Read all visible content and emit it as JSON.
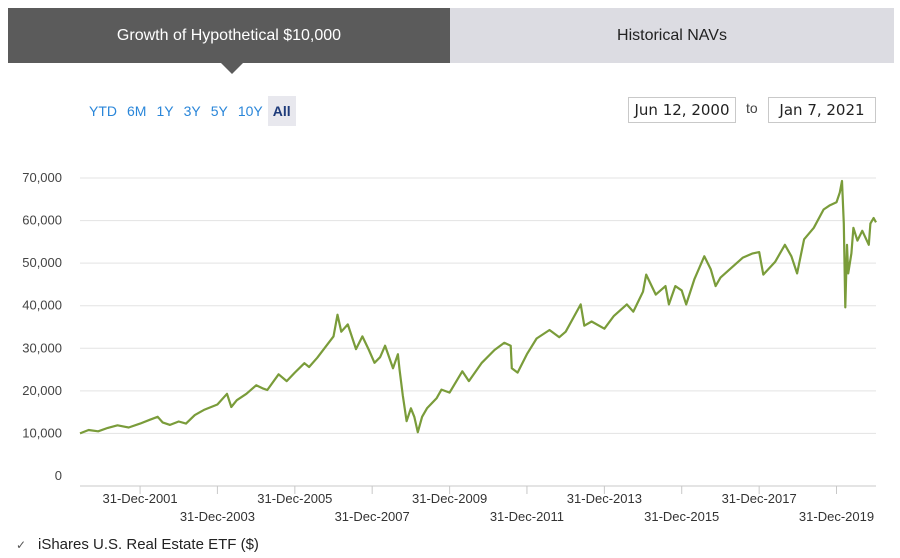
{
  "tabs": [
    {
      "label": "Growth of Hypothetical $10,000",
      "active": true
    },
    {
      "label": "Historical NAVs",
      "active": false
    }
  ],
  "range_buttons": [
    "YTD",
    "6M",
    "1Y",
    "3Y",
    "5Y",
    "10Y",
    "All"
  ],
  "selected_range": "All",
  "date_range": {
    "from": "Jun 12, 2000",
    "separator": "to",
    "to": "Jan 7, 2021"
  },
  "legend": {
    "label": "iShares U.S. Real Estate ETF ($)",
    "checked": true,
    "color": "#7a9c3a"
  },
  "chart_data": {
    "type": "line",
    "xlabel": "",
    "ylabel": "",
    "ylim": [
      0,
      70000
    ],
    "yticks": [
      0,
      10000,
      20000,
      30000,
      40000,
      50000,
      60000,
      70000
    ],
    "ytick_labels": [
      "0",
      "10,000",
      "20,000",
      "30,000",
      "40,000",
      "50,000",
      "60,000",
      "70,000"
    ],
    "xlim": [
      "2000-06-12",
      "2021-01-07"
    ],
    "xticks": [
      "2001-12-31",
      "2003-12-31",
      "2005-12-31",
      "2007-12-31",
      "2009-12-31",
      "2011-12-31",
      "2013-12-31",
      "2015-12-31",
      "2017-12-31",
      "2019-12-31"
    ],
    "xtick_labels": [
      "31-Dec-2001",
      "31-Dec-2003",
      "31-Dec-2005",
      "31-Dec-2007",
      "31-Dec-2009",
      "31-Dec-2011",
      "31-Dec-2013",
      "31-Dec-2015",
      "31-Dec-2017",
      "31-Dec-2019"
    ],
    "grid": true,
    "series": [
      {
        "name": "iShares U.S. Real Estate ETF ($)",
        "color": "#7a9c3a",
        "points": [
          [
            "2000-06-12",
            10000
          ],
          [
            "2000-09-01",
            10800
          ],
          [
            "2000-12-01",
            10500
          ],
          [
            "2001-03-01",
            11300
          ],
          [
            "2001-06-01",
            11900
          ],
          [
            "2001-09-15",
            11400
          ],
          [
            "2001-12-31",
            12300
          ],
          [
            "2002-04-01",
            13200
          ],
          [
            "2002-06-15",
            13900
          ],
          [
            "2002-08-01",
            12600
          ],
          [
            "2002-10-10",
            12000
          ],
          [
            "2002-12-31",
            12800
          ],
          [
            "2003-03-10",
            12300
          ],
          [
            "2003-06-01",
            14300
          ],
          [
            "2003-09-01",
            15600
          ],
          [
            "2003-12-31",
            16800
          ],
          [
            "2004-03-31",
            19300
          ],
          [
            "2004-05-10",
            16200
          ],
          [
            "2004-07-01",
            17800
          ],
          [
            "2004-09-30",
            19300
          ],
          [
            "2004-12-31",
            21300
          ],
          [
            "2005-03-01",
            20600
          ],
          [
            "2005-04-15",
            20200
          ],
          [
            "2005-07-31",
            23900
          ],
          [
            "2005-10-15",
            22300
          ],
          [
            "2005-12-31",
            24300
          ],
          [
            "2006-03-31",
            26500
          ],
          [
            "2006-05-15",
            25600
          ],
          [
            "2006-07-31",
            27800
          ],
          [
            "2006-10-31",
            30800
          ],
          [
            "2006-12-31",
            32800
          ],
          [
            "2007-02-07",
            37900
          ],
          [
            "2007-03-15",
            33900
          ],
          [
            "2007-05-15",
            35600
          ],
          [
            "2007-07-31",
            29800
          ],
          [
            "2007-09-30",
            32800
          ],
          [
            "2007-11-30",
            29600
          ],
          [
            "2008-01-22",
            26600
          ],
          [
            "2008-03-15",
            27900
          ],
          [
            "2008-05-01",
            30600
          ],
          [
            "2008-07-15",
            25300
          ],
          [
            "2008-08-30",
            28600
          ],
          [
            "2008-09-15",
            24900
          ],
          [
            "2008-10-15",
            18900
          ],
          [
            "2008-11-20",
            12900
          ],
          [
            "2008-12-31",
            15900
          ],
          [
            "2009-02-01",
            13900
          ],
          [
            "2009-03-06",
            10300
          ],
          [
            "2009-04-15",
            13900
          ],
          [
            "2009-06-01",
            15900
          ],
          [
            "2009-08-31",
            18300
          ],
          [
            "2009-10-15",
            20300
          ],
          [
            "2009-12-31",
            19600
          ],
          [
            "2010-04-30",
            24600
          ],
          [
            "2010-07-01",
            22300
          ],
          [
            "2010-10-31",
            26600
          ],
          [
            "2011-02-28",
            29600
          ],
          [
            "2011-05-31",
            31300
          ],
          [
            "2011-07-31",
            30600
          ],
          [
            "2011-08-10",
            25300
          ],
          [
            "2011-10-04",
            24300
          ],
          [
            "2011-12-31",
            28600
          ],
          [
            "2012-03-31",
            32300
          ],
          [
            "2012-07-31",
            34300
          ],
          [
            "2012-10-31",
            32600
          ],
          [
            "2012-12-31",
            33900
          ],
          [
            "2013-05-21",
            40300
          ],
          [
            "2013-06-24",
            35300
          ],
          [
            "2013-09-01",
            36300
          ],
          [
            "2013-12-31",
            34600
          ],
          [
            "2014-03-31",
            37600
          ],
          [
            "2014-07-31",
            40300
          ],
          [
            "2014-09-30",
            38600
          ],
          [
            "2014-12-31",
            43300
          ],
          [
            "2015-01-30",
            47300
          ],
          [
            "2015-04-30",
            42600
          ],
          [
            "2015-07-31",
            44600
          ],
          [
            "2015-09-01",
            40300
          ],
          [
            "2015-10-31",
            44600
          ],
          [
            "2015-12-31",
            43600
          ],
          [
            "2016-02-11",
            40300
          ],
          [
            "2016-04-30",
            46300
          ],
          [
            "2016-07-31",
            51600
          ],
          [
            "2016-09-30",
            48600
          ],
          [
            "2016-11-15",
            44600
          ],
          [
            "2016-12-31",
            46600
          ],
          [
            "2017-03-31",
            48600
          ],
          [
            "2017-07-31",
            51300
          ],
          [
            "2017-10-31",
            52300
          ],
          [
            "2017-12-31",
            52600
          ],
          [
            "2018-02-08",
            47300
          ],
          [
            "2018-05-31",
            50300
          ],
          [
            "2018-08-31",
            54300
          ],
          [
            "2018-10-31",
            51600
          ],
          [
            "2018-12-24",
            47600
          ],
          [
            "2019-02-28",
            55600
          ],
          [
            "2019-05-31",
            58300
          ],
          [
            "2019-08-31",
            62600
          ],
          [
            "2019-10-31",
            63600
          ],
          [
            "2019-12-31",
            64300
          ],
          [
            "2020-01-31",
            66600
          ],
          [
            "2020-02-21",
            69300
          ],
          [
            "2020-03-09",
            59300
          ],
          [
            "2020-03-23",
            39600
          ],
          [
            "2020-04-08",
            54300
          ],
          [
            "2020-04-20",
            47600
          ],
          [
            "2020-05-20",
            52300
          ],
          [
            "2020-06-08",
            58300
          ],
          [
            "2020-07-15",
            55300
          ],
          [
            "2020-08-31",
            57600
          ],
          [
            "2020-10-31",
            54300
          ],
          [
            "2020-11-15",
            59300
          ],
          [
            "2020-12-15",
            60600
          ],
          [
            "2021-01-07",
            59600
          ]
        ]
      }
    ]
  }
}
